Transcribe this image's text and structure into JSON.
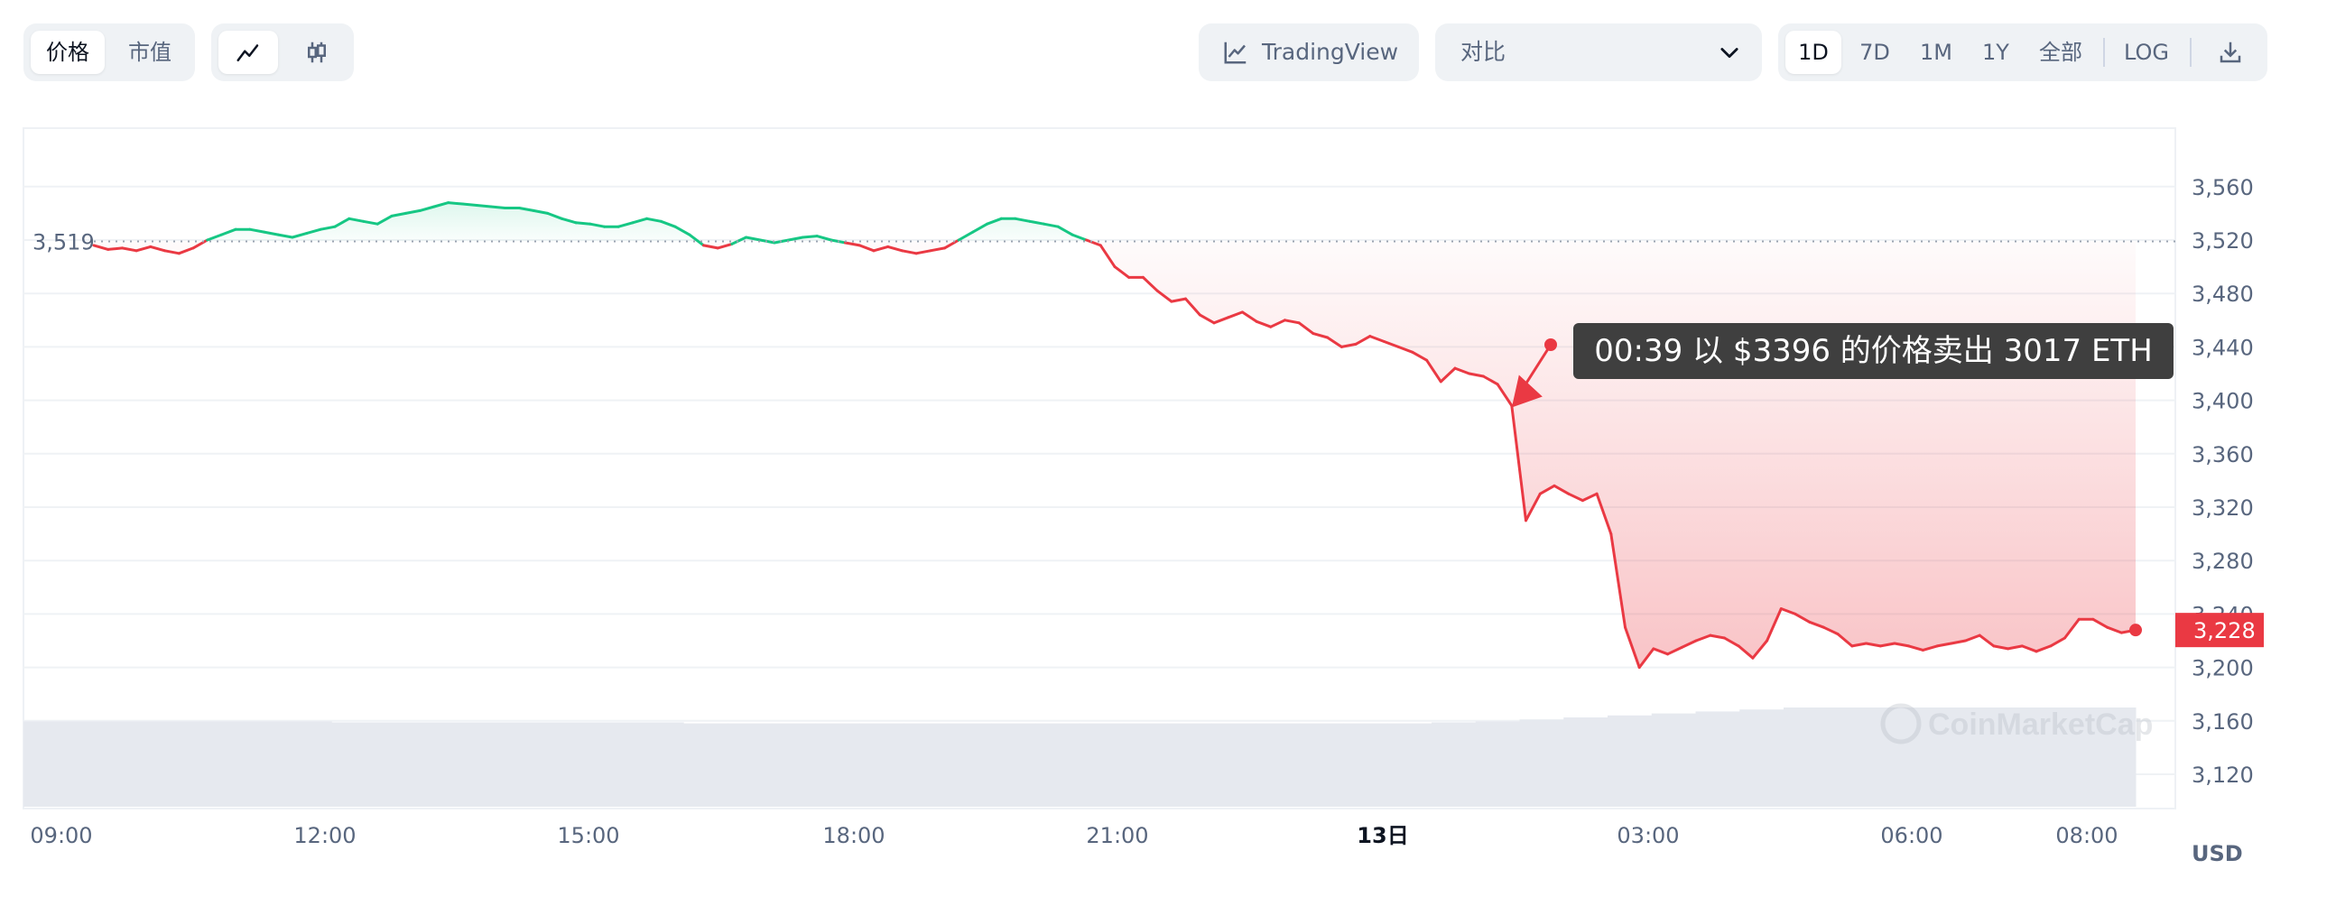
{
  "toolbar": {
    "view_tabs": [
      "价格",
      "市值"
    ],
    "chart_types": [
      "line-chart-icon",
      "candlestick-icon"
    ],
    "tradingview_label": "TradingView",
    "compare": {
      "label": "对比"
    },
    "ranges": [
      "1D",
      "7D",
      "1M",
      "1Y",
      "全部"
    ],
    "log_label": "LOG",
    "download_icon": "download-icon"
  },
  "colors": {
    "up": "#16c784",
    "down": "#ea3943",
    "baseline": "#9aa3b1"
  },
  "tooltip": "00:39 以 $3396 的价格卖出 3017 ETH",
  "watermark": "CoinMarketCap",
  "chart_data": {
    "type": "line",
    "series": [
      {
        "values": [
          3516,
          3513,
          3514,
          3512,
          3515,
          3512,
          3510,
          3514,
          3520,
          3524,
          3528,
          3528,
          3526,
          3524,
          3522,
          3525,
          3528,
          3530,
          3536,
          3534,
          3532,
          3538,
          3540,
          3542,
          3545,
          3548,
          3547,
          3546,
          3545,
          3544,
          3544,
          3542,
          3540,
          3536,
          3533,
          3532,
          3530,
          3530,
          3533,
          3536,
          3534,
          3530,
          3524,
          3516,
          3514,
          3517,
          3522,
          3520,
          3518,
          3520,
          3522,
          3523,
          3520,
          3518,
          3516,
          3512,
          3515,
          3512,
          3510,
          3512,
          3514,
          3520,
          3526,
          3532,
          3536,
          3536,
          3534,
          3532,
          3530,
          3524,
          3520,
          3516,
          3500,
          3492,
          3492,
          3482,
          3474,
          3476,
          3464,
          3458,
          3462,
          3466,
          3459,
          3455,
          3460,
          3458,
          3450,
          3447,
          3440,
          3442,
          3448,
          3444,
          3440,
          3436,
          3430,
          3414,
          3424,
          3420,
          3418,
          3412,
          3396,
          3310,
          3330,
          3336,
          3330,
          3325,
          3330,
          3300,
          3230,
          3200,
          3214,
          3210,
          3215,
          3220,
          3224,
          3222,
          3216,
          3207,
          3220,
          3244,
          3240,
          3234,
          3230,
          3225,
          3216,
          3218,
          3216,
          3218,
          3216,
          3213,
          3216,
          3218,
          3220,
          3224,
          3216,
          3214,
          3216,
          3212,
          3216,
          3222,
          3236,
          3236,
          3230,
          3226,
          3228
        ],
        "color_rule": "green above open price, red below"
      }
    ],
    "x_ticks": [
      "09:00",
      "12:00",
      "15:00",
      "18:00",
      "21:00",
      "13日",
      "03:00",
      "06:00",
      "08:00"
    ],
    "y_ticks": [
      3560,
      3520,
      3480,
      3440,
      3400,
      3360,
      3320,
      3280,
      3240,
      3200,
      3160,
      3120
    ],
    "ylim": [
      3105,
      3580
    ],
    "open_label": "3,519",
    "current_label": "3,228",
    "currency_label": "USD",
    "volume": {
      "values": [
        0.86,
        0.86,
        0.86,
        0.86,
        0.86,
        0.86,
        0.86,
        0.85,
        0.85,
        0.85,
        0.85,
        0.85,
        0.85,
        0.85,
        0.85,
        0.84,
        0.84,
        0.84,
        0.84,
        0.84,
        0.84,
        0.84,
        0.84,
        0.84,
        0.84,
        0.84,
        0.84,
        0.84,
        0.84,
        0.84,
        0.84,
        0.84,
        0.85,
        0.86,
        0.88,
        0.9,
        0.92,
        0.94,
        0.96,
        0.98,
        1.0,
        1.0,
        1.0,
        1.0,
        1.0,
        1.0,
        1.0,
        1.0
      ]
    },
    "annotation": {
      "text": "00:39 以 $3396 的价格卖出 3017 ETH",
      "value": 3396
    },
    "grid": true
  }
}
